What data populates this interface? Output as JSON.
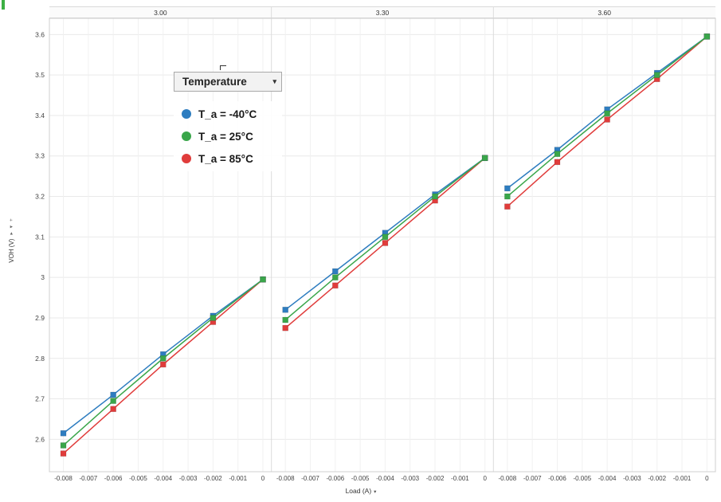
{
  "page": {
    "corner_mark_color": "#3cb043"
  },
  "icons": {
    "legend_caret": "▾",
    "xaxis_caret": "▾",
    "yaxis_caret_right": "▸",
    "yaxis_caret_down": "▾",
    "yaxis_plus": "+"
  },
  "chart_data": {
    "type": "line",
    "title": "",
    "xlabel": "Load (A)",
    "ylabel": "VOH (V)",
    "facet_variable_values": [
      "3.00",
      "3.30",
      "3.60"
    ],
    "x": [
      -0.008,
      -0.006,
      -0.004,
      -0.002,
      0
    ],
    "xtick_labels": [
      "-0.008",
      "-0.007",
      "-0.006",
      "-0.005",
      "-0.004",
      "-0.003",
      "-0.002",
      "-0.001",
      "0"
    ],
    "ytick_labels": [
      "2.6",
      "2.7",
      "2.8",
      "2.9",
      "3",
      "3.1",
      "3.2",
      "3.3",
      "3.4",
      "3.5",
      "3.6"
    ],
    "xlim": [
      -0.00856,
      0.00034
    ],
    "ylim": [
      2.52,
      3.64
    ],
    "grid": true,
    "legend": {
      "title": "Temperature",
      "position": "upper-left-overlay",
      "entries": [
        {
          "label": "T_a = -40°C",
          "color": "#2e7dc0"
        },
        {
          "label": "T_a = 25°C",
          "color": "#3aa64a"
        },
        {
          "label": "T_a = 85°C",
          "color": "#e03c3b"
        }
      ]
    },
    "draw_order": [
      2,
      0,
      1
    ],
    "facets": [
      {
        "label": "3.00",
        "series": [
          {
            "name": "T_a = -40°C",
            "color": "#2e7dc0",
            "y": [
              2.615,
              2.71,
              2.81,
              2.905,
              2.995
            ]
          },
          {
            "name": "T_a = 25°C",
            "color": "#3aa64a",
            "y": [
              2.585,
              2.695,
              2.8,
              2.9,
              2.995
            ]
          },
          {
            "name": "T_a = 85°C",
            "color": "#e03c3b",
            "y": [
              2.565,
              2.675,
              2.785,
              2.89,
              2.995
            ]
          }
        ]
      },
      {
        "label": "3.30",
        "series": [
          {
            "name": "T_a = -40°C",
            "color": "#2e7dc0",
            "y": [
              2.92,
              3.015,
              3.11,
              3.205,
              3.295
            ]
          },
          {
            "name": "T_a = 25°C",
            "color": "#3aa64a",
            "y": [
              2.895,
              3.0,
              3.1,
              3.2,
              3.295
            ]
          },
          {
            "name": "T_a = 85°C",
            "color": "#e03c3b",
            "y": [
              2.875,
              2.98,
              3.085,
              3.19,
              3.295
            ]
          }
        ]
      },
      {
        "label": "3.60",
        "series": [
          {
            "name": "T_a = -40°C",
            "color": "#2e7dc0",
            "y": [
              3.22,
              3.315,
              3.415,
              3.505,
              3.595
            ]
          },
          {
            "name": "T_a = 25°C",
            "color": "#3aa64a",
            "y": [
              3.2,
              3.305,
              3.405,
              3.5,
              3.595
            ]
          },
          {
            "name": "T_a = 85°C",
            "color": "#e03c3b",
            "y": [
              3.175,
              3.285,
              3.39,
              3.49,
              3.595
            ]
          }
        ]
      }
    ]
  }
}
